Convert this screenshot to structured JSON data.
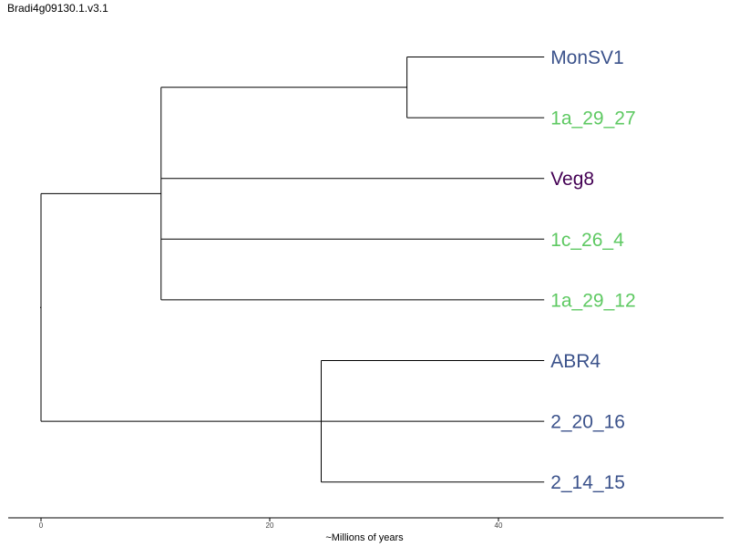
{
  "title": "Bradi4g09130.1.v3.1",
  "axis": {
    "label": "~Millions of years",
    "ticks": [
      0,
      20,
      40
    ],
    "range": [
      -3,
      60
    ]
  },
  "colors": {
    "branch": "#000000",
    "blue": "#3b528b",
    "green": "#5ec962",
    "purple": "#440154"
  },
  "tips": [
    {
      "name": "MonSV1",
      "color": "#3b528b"
    },
    {
      "name": "1a_29_27",
      "color": "#5ec962"
    },
    {
      "name": "Veg8",
      "color": "#440154"
    },
    {
      "name": "1c_26_4",
      "color": "#5ec962"
    },
    {
      "name": "1a_29_12",
      "color": "#5ec962"
    },
    {
      "name": "ABR4",
      "color": "#3b528b"
    },
    {
      "name": "2_20_16",
      "color": "#3b528b"
    },
    {
      "name": "2_14_15",
      "color": "#3b528b"
    }
  ],
  "nodes": {
    "root": 0,
    "cladeA": 0,
    "cladeA1": 10.5,
    "cladeA1a": 32,
    "cladeB": 24.5,
    "tips": 44
  }
}
